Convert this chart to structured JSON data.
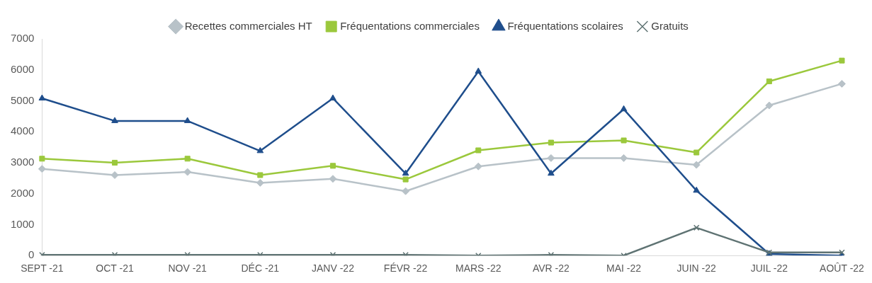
{
  "chart_data": {
    "type": "line",
    "categories": [
      "SEPT -21",
      "OCT -21",
      "NOV -21",
      "DÉC -21",
      "JANV -22",
      "FÉVR -22",
      "MARS -22",
      "AVR -22",
      "MAI -22",
      "JUIN -22",
      "JUIL -22",
      "AOÛT -22"
    ],
    "series": [
      {
        "name": "Recettes commerciales HT",
        "color": "#b8c2c8",
        "marker": "diamond",
        "values": [
          2800,
          2600,
          2700,
          2350,
          2480,
          2080,
          2880,
          3150,
          3150,
          2930,
          4850,
          5550
        ]
      },
      {
        "name": "Fréquentations commerciales",
        "color": "#9bc83c",
        "marker": "square",
        "values": [
          3130,
          3000,
          3130,
          2600,
          2900,
          2460,
          3400,
          3650,
          3720,
          3330,
          5630,
          6300
        ]
      },
      {
        "name": "Fréquentations scolaires",
        "color": "#1f4e8c",
        "marker": "triangle",
        "values": [
          5080,
          4350,
          4350,
          3380,
          5080,
          2650,
          5950,
          2650,
          4730,
          2100,
          50,
          0
        ]
      },
      {
        "name": "Gratuits",
        "color": "#5f7373",
        "marker": "cross",
        "values": [
          20,
          20,
          20,
          20,
          20,
          20,
          0,
          20,
          0,
          900,
          100,
          100
        ]
      }
    ],
    "ylim": [
      0,
      7000
    ],
    "yticks": [
      0,
      1000,
      2000,
      3000,
      4000,
      5000,
      6000,
      7000
    ],
    "grid": false,
    "legend": "top",
    "line_style": "solid"
  }
}
